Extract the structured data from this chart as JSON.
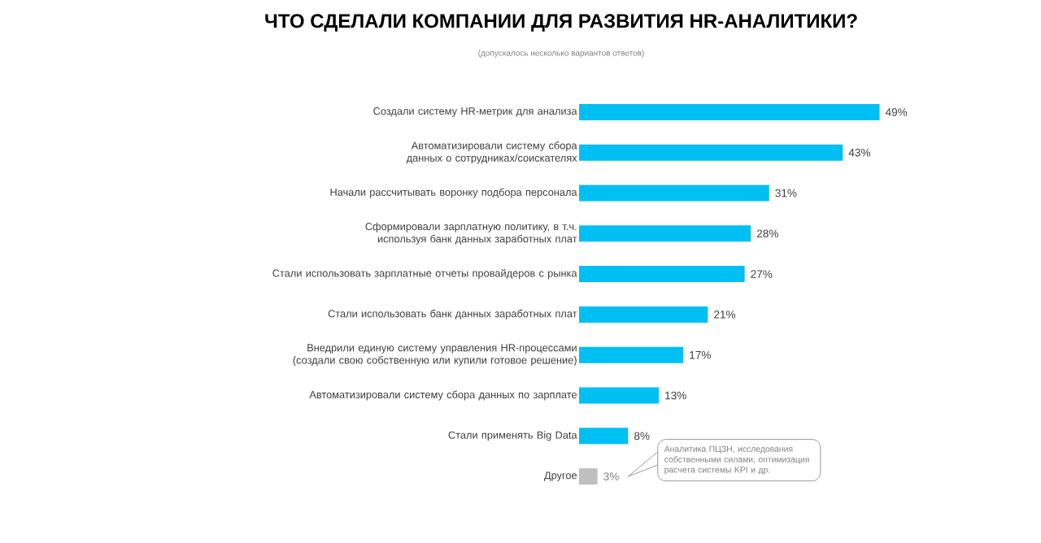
{
  "chart_data": {
    "type": "bar",
    "orientation": "horizontal",
    "title": "ЧТО СДЕЛАЛИ КОМПАНИИ ДЛЯ РАЗВИТИЯ HR-АНАЛИТИКИ?",
    "subtitle": "(допускалось несколько вариантов ответов)",
    "categories": [
      "Создали систему HR-метрик для анализа",
      "Автоматизировали систему сбора данных о сотрудниках/соискателях",
      "Начали рассчитывать воронку подбора персонала",
      "Сформировали зарплатную политику, в т.ч. используя банк данных заработных плат",
      "Стали использовать зарплатные отчеты провайдеров с рынка",
      "Стали использовать банк данных заработных плат",
      "Внедрили единую систему управления HR-процессами (создали свою собственную или купили готовое решение)",
      "Автоматизировали систему сбора данных по зарплате",
      "Стали применять Big Data",
      "Другое"
    ],
    "values": [
      49,
      43,
      31,
      28,
      27,
      21,
      17,
      13,
      8,
      3
    ],
    "value_labels": [
      "49%",
      "43%",
      "31%",
      "28%",
      "27%",
      "21%",
      "17%",
      "13%",
      "8%",
      "3%"
    ],
    "colors": [
      "#00bff3",
      "#00bff3",
      "#00bff3",
      "#00bff3",
      "#00bff3",
      "#00bff3",
      "#00bff3",
      "#00bff3",
      "#00bff3",
      "#bfbfbf"
    ],
    "annotations": [
      "Аналитика ПЦЗН, исследования собственными силами, оптимизация расчета системы KPI и др."
    ]
  }
}
